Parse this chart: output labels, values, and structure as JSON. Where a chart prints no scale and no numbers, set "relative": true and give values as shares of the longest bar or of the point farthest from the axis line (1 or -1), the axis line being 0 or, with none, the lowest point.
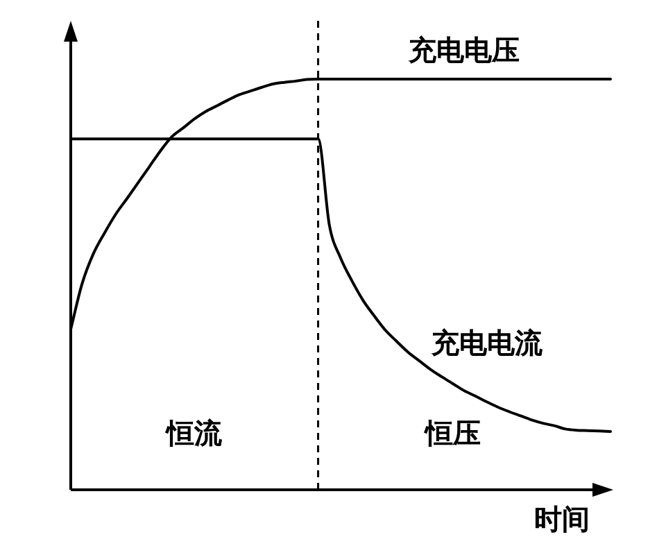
{
  "chart_data": {
    "type": "line",
    "relative": true,
    "marker": "none",
    "xlabel": "时间",
    "categories": [
      null,
      null,
      null,
      null,
      null,
      null,
      null,
      null,
      null,
      null,
      null,
      null,
      null,
      null,
      null,
      null,
      null,
      null,
      null,
      null,
      null,
      null,
      null,
      null,
      null,
      null,
      null,
      null,
      null,
      null,
      null,
      null,
      null,
      null,
      null,
      null,
      null,
      null,
      null,
      null,
      null,
      null,
      null,
      null,
      null,
      null,
      null,
      null,
      null
    ],
    "series": [
      {
        "name": "充电电压",
        "color": "#000000",
        "values": [
          0.391,
          0.501,
          0.574,
          0.625,
          0.671,
          0.709,
          0.748,
          0.787,
          0.826,
          0.86,
          0.881,
          0.903,
          0.921,
          0.935,
          0.949,
          0.962,
          0.971,
          0.98,
          0.988,
          0.992,
          0.995,
          0.999,
          1,
          1,
          1,
          1,
          1,
          1,
          1,
          1,
          1,
          1,
          1,
          1,
          1,
          1,
          1,
          1,
          1,
          1,
          1,
          1,
          1,
          1,
          1,
          1,
          1,
          1,
          1
        ]
      },
      {
        "name": "充电电流",
        "color": "#000000",
        "values": [
          0.854,
          0.854,
          0.854,
          0.854,
          0.854,
          0.854,
          0.854,
          0.854,
          0.854,
          0.854,
          0.854,
          0.854,
          0.854,
          0.854,
          0.854,
          0.854,
          0.854,
          0.854,
          0.854,
          0.854,
          0.854,
          0.854,
          0.854,
          0.644,
          0.564,
          0.509,
          0.461,
          0.423,
          0.388,
          0.361,
          0.335,
          0.314,
          0.293,
          0.275,
          0.258,
          0.241,
          0.228,
          0.214,
          0.201,
          0.19,
          0.18,
          0.17,
          0.162,
          0.156,
          0.148,
          0.145,
          0.144,
          0.143,
          0.142
        ]
      }
    ],
    "annotations": [
      "恒流",
      "恒压"
    ]
  }
}
